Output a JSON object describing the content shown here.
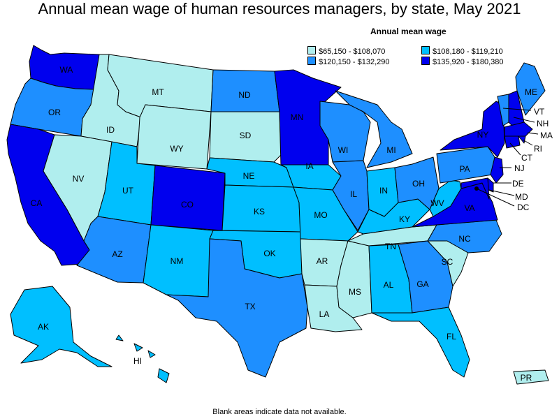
{
  "title": "Annual mean wage of human resources managers, by state, May 2021",
  "legend": {
    "title": "Annual mean wage",
    "items": [
      {
        "label": "$65,150 - $108,070",
        "color": "#b0eeee"
      },
      {
        "label": "$108,180 - $119,210",
        "color": "#00bfff"
      },
      {
        "label": "$120,150 - $132,290",
        "color": "#1e8fff"
      },
      {
        "label": "$135,920 - $180,380",
        "color": "#0000ee"
      }
    ]
  },
  "states": {
    "WA": "WA",
    "OR": "OR",
    "CA": "CA",
    "ID": "ID",
    "NV": "NV",
    "MT": "MT",
    "WY": "WY",
    "UT": "UT",
    "AZ": "AZ",
    "CO": "CO",
    "NM": "NM",
    "ND": "ND",
    "SD": "SD",
    "NE": "NE",
    "KS": "KS",
    "OK": "OK",
    "TX": "TX",
    "MN": "MN",
    "IA": "IA",
    "MO": "MO",
    "AR": "AR",
    "LA": "LA",
    "WI": "WI",
    "IL": "IL",
    "MS": "MS",
    "MI": "MI",
    "IN": "IN",
    "KY": "KY",
    "TN": "TN",
    "AL": "AL",
    "OH": "OH",
    "GA": "GA",
    "FL": "FL",
    "SC": "SC",
    "NC": "NC",
    "VA": "VA",
    "WV": "WV",
    "PA": "PA",
    "NY": "NY",
    "ME": "ME",
    "VT": "VT",
    "NH": "NH",
    "MA": "MA",
    "RI": "RI",
    "CT": "CT",
    "NJ": "NJ",
    "DE": "DE",
    "MD": "MD",
    "DC": "DC",
    "AK": "AK",
    "HI": "HI",
    "PR": "PR"
  },
  "footnote": "Blank areas indicate data not available."
}
